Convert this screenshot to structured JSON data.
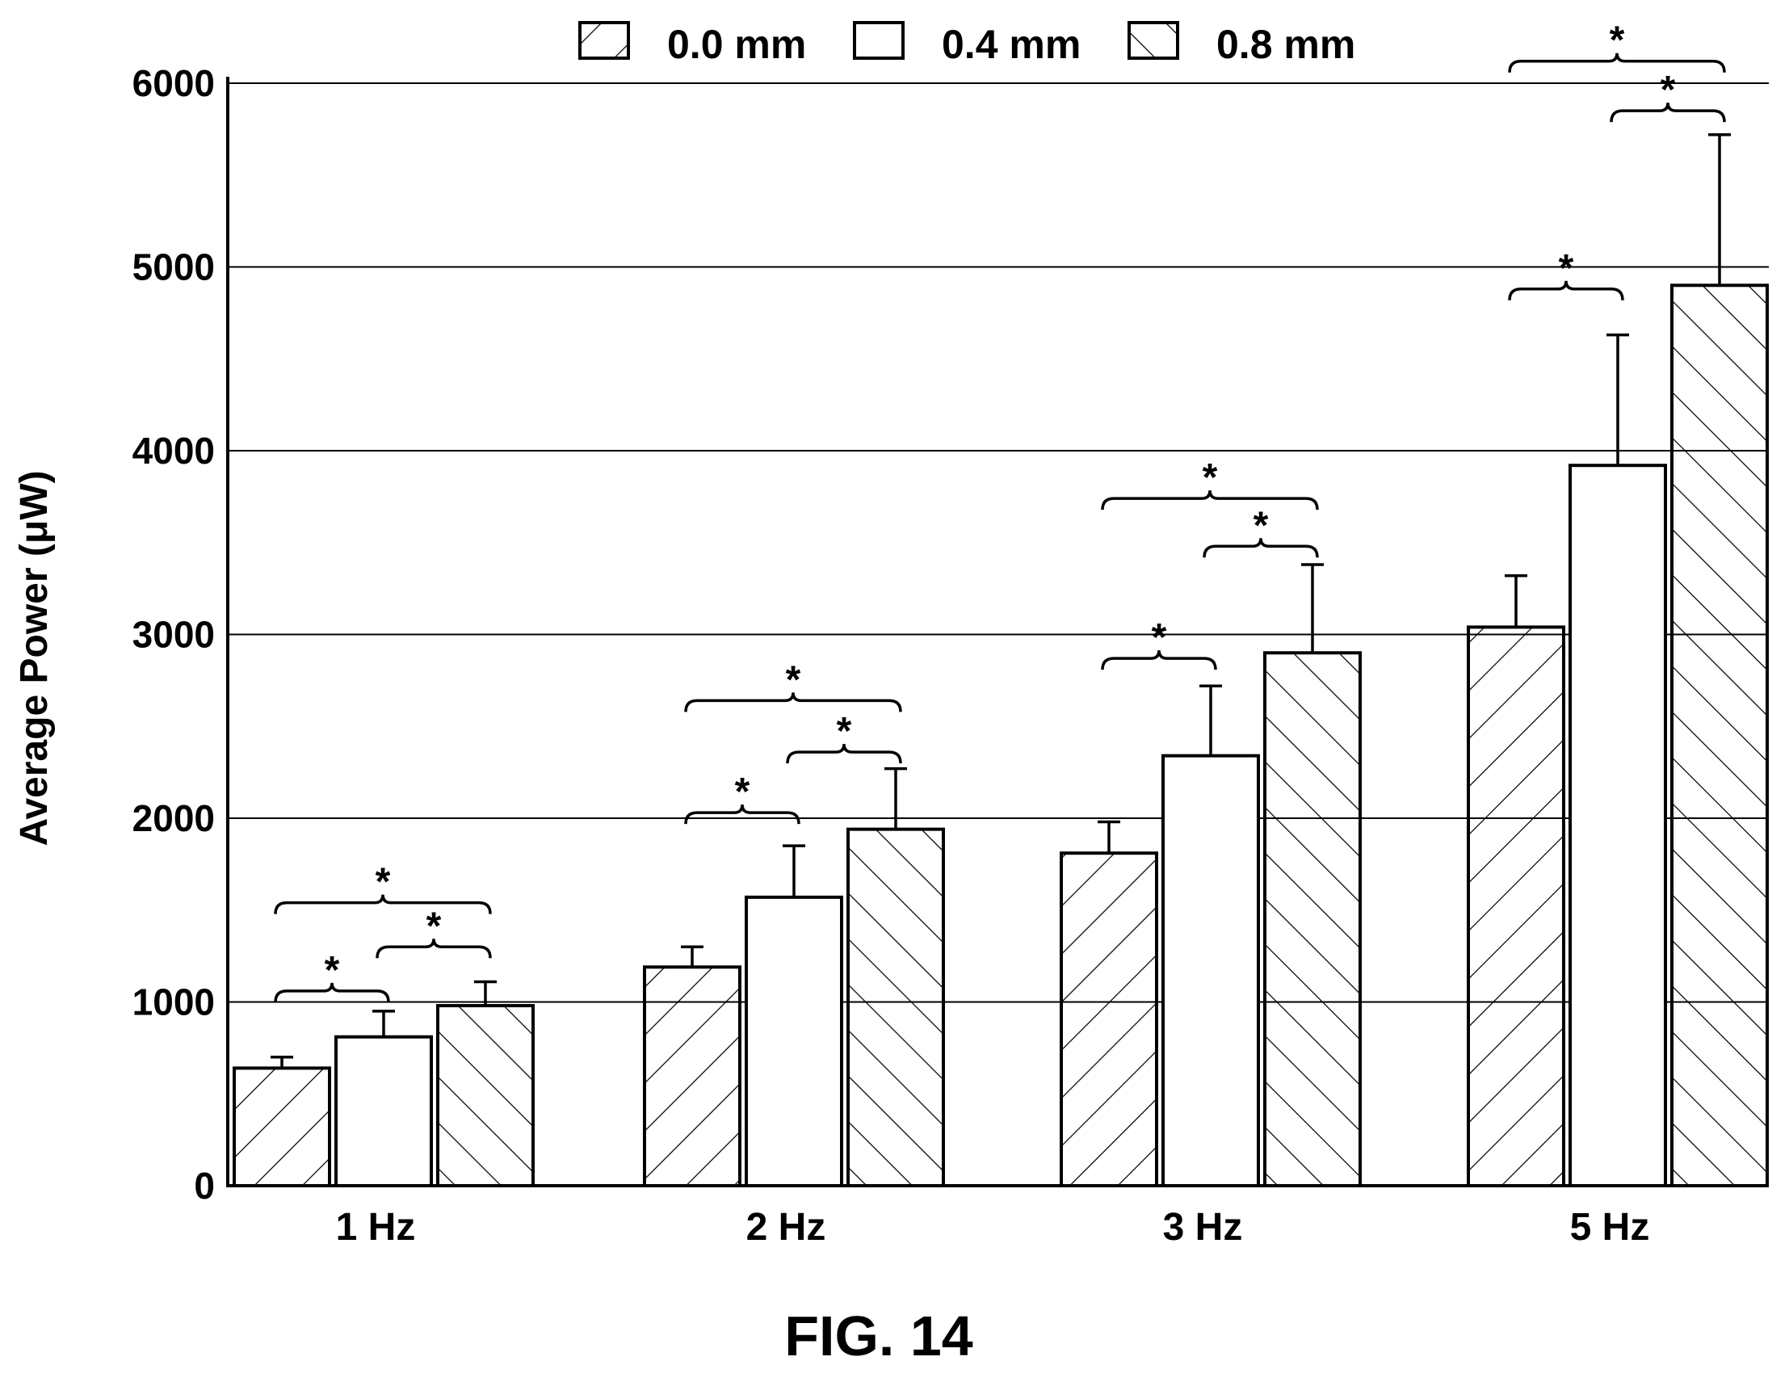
{
  "figure_caption": "FIG. 14",
  "chart_data": {
    "type": "bar",
    "title": "",
    "xlabel": "",
    "ylabel": "Average Power (μW)",
    "ylim": [
      0,
      6000
    ],
    "yticks": [
      0,
      1000,
      2000,
      3000,
      4000,
      5000,
      6000
    ],
    "grid": true,
    "legend_position": "top",
    "categories": [
      "1 Hz",
      "2 Hz",
      "3 Hz",
      "5 Hz"
    ],
    "series": [
      {
        "name": "0.0 mm",
        "pattern": "forward-hatch",
        "values": [
          640,
          1190,
          1810,
          3040
        ],
        "error": [
          60,
          110,
          170,
          280
        ]
      },
      {
        "name": "0.4 mm",
        "pattern": "none",
        "values": [
          810,
          1570,
          2340,
          3920
        ],
        "error": [
          140,
          280,
          380,
          710
        ]
      },
      {
        "name": "0.8 mm",
        "pattern": "back-hatch",
        "values": [
          980,
          1940,
          2900,
          4900
        ],
        "error": [
          130,
          330,
          480,
          820
        ]
      }
    ],
    "significance": [
      {
        "category": 0,
        "from_series": 0,
        "to_series": 1,
        "label": "*",
        "y": 1060
      },
      {
        "category": 0,
        "from_series": 1,
        "to_series": 2,
        "label": "*",
        "y": 1300
      },
      {
        "category": 0,
        "from_series": 0,
        "to_series": 2,
        "label": "*",
        "y": 1540
      },
      {
        "category": 1,
        "from_series": 0,
        "to_series": 1,
        "label": "*",
        "y": 2030
      },
      {
        "category": 1,
        "from_series": 1,
        "to_series": 2,
        "label": "*",
        "y": 2360
      },
      {
        "category": 1,
        "from_series": 0,
        "to_series": 2,
        "label": "*",
        "y": 2640
      },
      {
        "category": 2,
        "from_series": 0,
        "to_series": 1,
        "label": "*",
        "y": 2870
      },
      {
        "category": 2,
        "from_series": 1,
        "to_series": 2,
        "label": "*",
        "y": 3480
      },
      {
        "category": 2,
        "from_series": 0,
        "to_series": 2,
        "label": "*",
        "y": 3740
      },
      {
        "category": 3,
        "from_series": 0,
        "to_series": 1,
        "label": "*",
        "y": 4880
      },
      {
        "category": 3,
        "from_series": 1,
        "to_series": 2,
        "label": "*",
        "y": 5850
      },
      {
        "category": 3,
        "from_series": 0,
        "to_series": 2,
        "label": "*",
        "y": 6120
      }
    ]
  }
}
